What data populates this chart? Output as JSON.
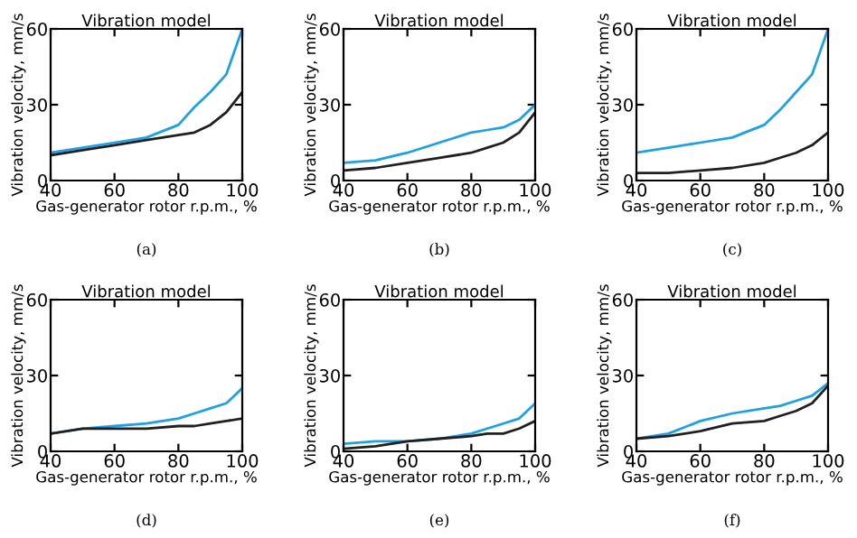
{
  "chart_data": [
    {
      "type": "line",
      "title": "Vibration model",
      "xlabel": "Gas-generator rotor r.p.m., %",
      "ylabel": "Vibration velocity, mm/s",
      "x": [
        40,
        50,
        60,
        70,
        80,
        85,
        90,
        95,
        100
      ],
      "xlim": [
        40,
        100
      ],
      "ylim": [
        0,
        60
      ],
      "xticks": [
        40,
        60,
        80,
        100
      ],
      "yticks": [
        0,
        30,
        60
      ],
      "grid": false,
      "legend": false,
      "annotations": [
        "(a)"
      ],
      "series": [
        {
          "color": "#1ea0e6",
          "values": [
            11,
            13,
            15,
            17,
            22,
            29,
            35,
            42,
            60
          ]
        },
        {
          "color": "#202020",
          "values": [
            10,
            12,
            14,
            16,
            18,
            19,
            22,
            27,
            35
          ]
        }
      ]
    },
    {
      "type": "line",
      "title": "Vibration model",
      "xlabel": "Gas-generator rotor r.p.m., %",
      "ylabel": "Vibration velocity, mm/s",
      "x": [
        40,
        50,
        60,
        70,
        80,
        85,
        90,
        95,
        100
      ],
      "xlim": [
        40,
        100
      ],
      "ylim": [
        0,
        60
      ],
      "xticks": [
        40,
        60,
        80,
        100
      ],
      "yticks": [
        0,
        30,
        60
      ],
      "grid": false,
      "legend": false,
      "annotations": [
        "(b)"
      ],
      "series": [
        {
          "color": "#1ea0e6",
          "values": [
            7,
            8,
            11,
            15,
            19,
            20,
            21,
            24,
            30
          ]
        },
        {
          "color": "#202020",
          "values": [
            4,
            5,
            7,
            9,
            11,
            13,
            15,
            19,
            27
          ]
        }
      ]
    },
    {
      "type": "line",
      "title": "Vibration model",
      "xlabel": "Gas-generator rotor r.p.m., %",
      "ylabel": "Vibration velocity, mm/s",
      "x": [
        40,
        50,
        60,
        70,
        80,
        85,
        90,
        95,
        100
      ],
      "xlim": [
        40,
        100
      ],
      "ylim": [
        0,
        60
      ],
      "xticks": [
        40,
        60,
        80,
        100
      ],
      "yticks": [
        0,
        30,
        60
      ],
      "grid": false,
      "legend": false,
      "annotations": [
        "(c)"
      ],
      "series": [
        {
          "color": "#1ea0e6",
          "values": [
            11,
            13,
            15,
            17,
            22,
            28,
            35,
            42,
            60
          ]
        },
        {
          "color": "#202020",
          "values": [
            3,
            3,
            4,
            5,
            7,
            9,
            11,
            14,
            19
          ]
        }
      ]
    },
    {
      "type": "line",
      "title": "Vibration model",
      "xlabel": "Gas-generator rotor r.p.m., %",
      "ylabel": "Vibration velocity, mm/s",
      "x": [
        40,
        50,
        60,
        70,
        80,
        85,
        90,
        95,
        100
      ],
      "xlim": [
        40,
        100
      ],
      "ylim": [
        0,
        60
      ],
      "xticks": [
        40,
        60,
        80,
        100
      ],
      "yticks": [
        0,
        30,
        60
      ],
      "grid": false,
      "legend": false,
      "annotations": [
        "(d)"
      ],
      "series": [
        {
          "color": "#1ea0e6",
          "values": [
            7,
            9,
            10,
            11,
            13,
            15,
            17,
            19,
            25
          ]
        },
        {
          "color": "#202020",
          "values": [
            7,
            9,
            9,
            9,
            10,
            10,
            11,
            12,
            13
          ]
        }
      ]
    },
    {
      "type": "line",
      "title": "Vibration model",
      "xlabel": "Gas-generator rotor r.p.m., %",
      "ylabel": "Vibration velocity, mm/s",
      "x": [
        40,
        50,
        60,
        70,
        80,
        85,
        90,
        95,
        100
      ],
      "xlim": [
        40,
        100
      ],
      "ylim": [
        0,
        60
      ],
      "xticks": [
        40,
        60,
        80,
        100
      ],
      "yticks": [
        0,
        30,
        60
      ],
      "grid": false,
      "legend": false,
      "annotations": [
        "(e)"
      ],
      "series": [
        {
          "color": "#1ea0e6",
          "values": [
            3,
            4,
            4,
            5,
            7,
            9,
            11,
            13,
            19
          ]
        },
        {
          "color": "#202020",
          "values": [
            1,
            2,
            4,
            5,
            6,
            7,
            7,
            9,
            12
          ]
        }
      ]
    },
    {
      "type": "line",
      "title": "Vibration model",
      "xlabel": "Gas-generator rotor r.p.m., %",
      "ylabel": "Vibration velocity, mm/s",
      "x": [
        40,
        50,
        60,
        70,
        80,
        85,
        90,
        95,
        100
      ],
      "xlim": [
        40,
        100
      ],
      "ylim": [
        0,
        60
      ],
      "xticks": [
        40,
        60,
        80,
        100
      ],
      "yticks": [
        0,
        30,
        60
      ],
      "grid": false,
      "legend": false,
      "annotations": [
        "(f)"
      ],
      "series": [
        {
          "color": "#1ea0e6",
          "values": [
            5,
            7,
            12,
            15,
            17,
            18,
            20,
            22,
            27
          ]
        },
        {
          "color": "#202020",
          "values": [
            5,
            6,
            8,
            11,
            12,
            14,
            16,
            19,
            26
          ]
        }
      ]
    }
  ]
}
